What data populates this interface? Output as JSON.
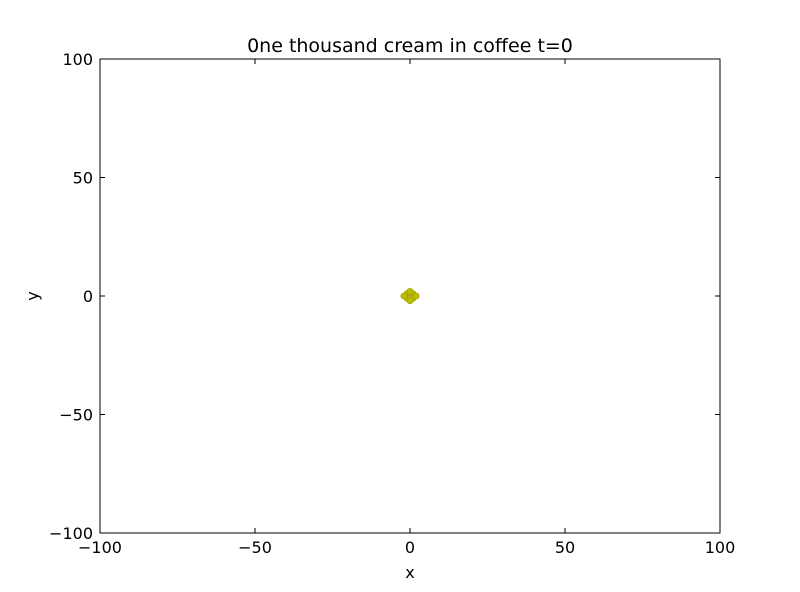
{
  "chart_data": {
    "type": "scatter",
    "title": "0ne thousand cream in coffee t=0",
    "xlabel": "x",
    "ylabel": "y",
    "xlim": [
      -100,
      100
    ],
    "ylim": [
      -100,
      100
    ],
    "xticks": [
      "−100",
      "−50",
      "0",
      "50",
      "100"
    ],
    "xtick_values": [
      -100,
      -50,
      0,
      50,
      100
    ],
    "yticks": [
      "−100",
      "−50",
      "0",
      "50",
      "100"
    ],
    "ytick_values": [
      -100,
      -50,
      0,
      50,
      100
    ],
    "grid": false,
    "series": [
      {
        "color": "#bfbf00",
        "points": [
          [
            -1,
            1
          ],
          [
            0,
            1
          ],
          [
            1,
            1
          ],
          [
            -1,
            0
          ],
          [
            0,
            0
          ],
          [
            1,
            0
          ],
          [
            -1,
            -1
          ],
          [
            0,
            -1
          ],
          [
            1,
            -1
          ],
          [
            0,
            2
          ],
          [
            0,
            -2
          ],
          [
            2,
            0
          ],
          [
            -2,
            0
          ]
        ]
      }
    ]
  }
}
